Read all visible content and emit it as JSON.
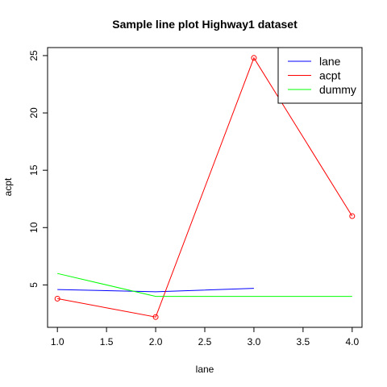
{
  "chart_data": {
    "type": "line",
    "title": "Sample line plot  Highway1 dataset",
    "xlabel": "lane",
    "ylabel": "acpt",
    "xlim": [
      0.9,
      4.1
    ],
    "ylim": [
      1.3,
      25.7
    ],
    "x_ticks": [
      {
        "value": 1.0,
        "label": "1.0"
      },
      {
        "value": 1.5,
        "label": "1.5"
      },
      {
        "value": 2.0,
        "label": "2.0"
      },
      {
        "value": 2.5,
        "label": "2.5"
      },
      {
        "value": 3.0,
        "label": "3.0"
      },
      {
        "value": 3.5,
        "label": "3.5"
      },
      {
        "value": 4.0,
        "label": "4.0"
      }
    ],
    "y_ticks": [
      {
        "value": 5,
        "label": "5"
      },
      {
        "value": 10,
        "label": "10"
      },
      {
        "value": 15,
        "label": "15"
      },
      {
        "value": 20,
        "label": "20"
      },
      {
        "value": 25,
        "label": "25"
      }
    ],
    "grid": false,
    "legend_position": "top-right",
    "series": [
      {
        "name": "lane",
        "color": "#0000ff",
        "x": [
          1,
          2,
          3
        ],
        "y": [
          4.6,
          4.4,
          4.7
        ],
        "markers": false
      },
      {
        "name": "acpt",
        "color": "#ff0000",
        "x": [
          1,
          2,
          3,
          4
        ],
        "y": [
          3.8,
          2.2,
          24.8,
          11.0
        ],
        "markers": true
      },
      {
        "name": "dummy",
        "color": "#00ff00",
        "x": [
          1,
          2,
          3,
          4
        ],
        "y": [
          6.0,
          4.0,
          4.0,
          4.0
        ],
        "markers": false
      }
    ]
  }
}
